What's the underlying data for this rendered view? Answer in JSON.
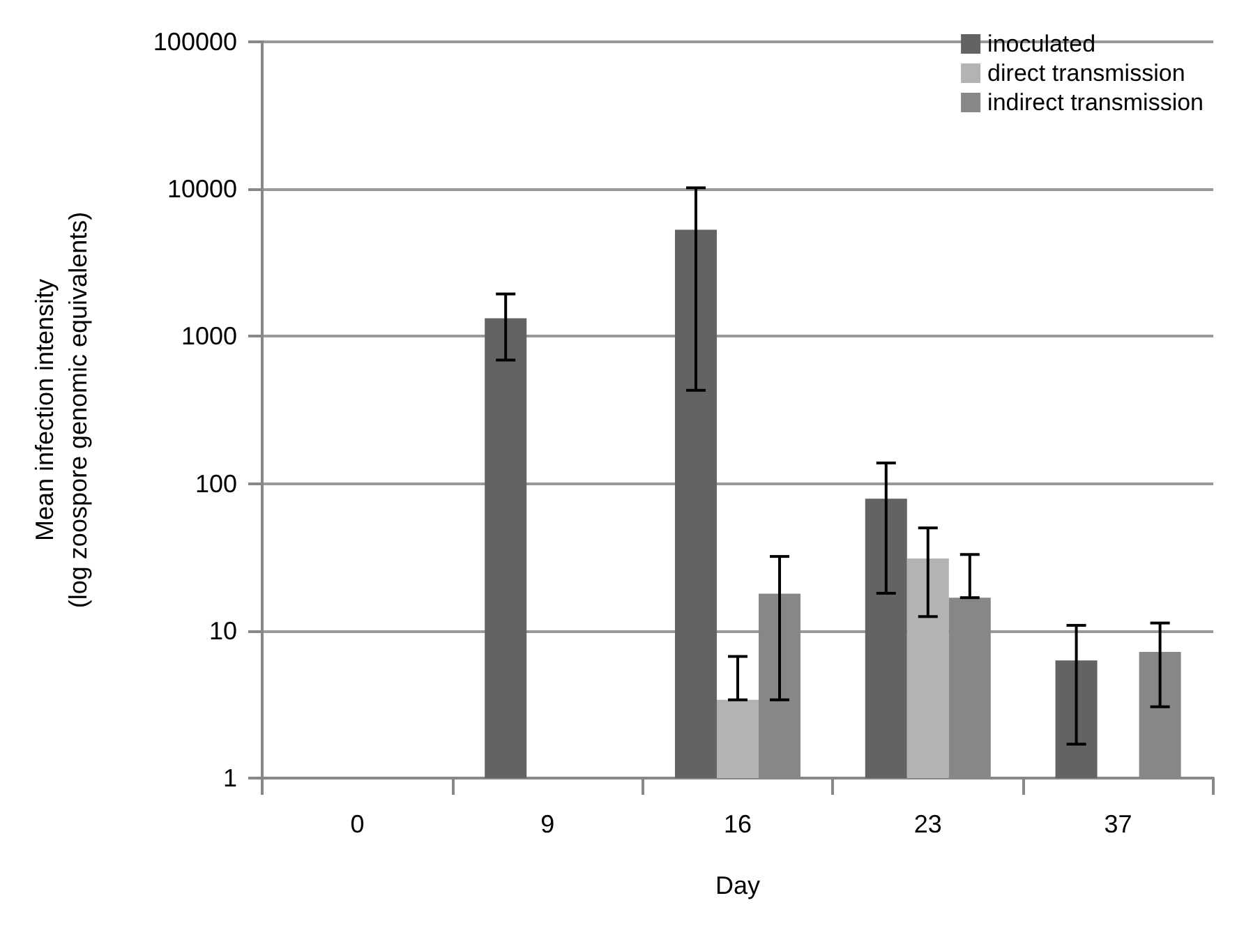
{
  "chart_data": {
    "type": "bar",
    "xlabel": "Day",
    "ylabel": "Mean infection intensity\n(log zoospore genomic equivalents)",
    "categories": [
      "0",
      "9",
      "16",
      "23",
      "37"
    ],
    "series": [
      {
        "name": "inoculated",
        "color": "#636363",
        "values": [
          null,
          1325,
          5300,
          79,
          6.3
        ],
        "errors": [
          null,
          [
            690,
            1940
          ],
          [
            430,
            10200
          ],
          [
            18,
            138
          ],
          [
            1.7,
            10.9
          ]
        ]
      },
      {
        "name": "direct transmission",
        "color": "#b3b3b3",
        "values": [
          null,
          null,
          3.4,
          31,
          null
        ],
        "errors": [
          null,
          null,
          [
            3.4,
            6.7
          ],
          [
            12.5,
            50
          ],
          null
        ]
      },
      {
        "name": "indirect transmission",
        "color": "#878787",
        "values": [
          null,
          null,
          17.9,
          16.8,
          7.2
        ],
        "errors": [
          null,
          null,
          [
            3.4,
            32
          ],
          [
            16.8,
            33
          ],
          [
            3.05,
            11.3
          ]
        ]
      }
    ],
    "log": "y",
    "ylim": [
      1,
      100000
    ],
    "yticks": [
      1,
      10,
      100,
      1000,
      10000,
      100000
    ],
    "grid": "y",
    "legend": "top right"
  }
}
